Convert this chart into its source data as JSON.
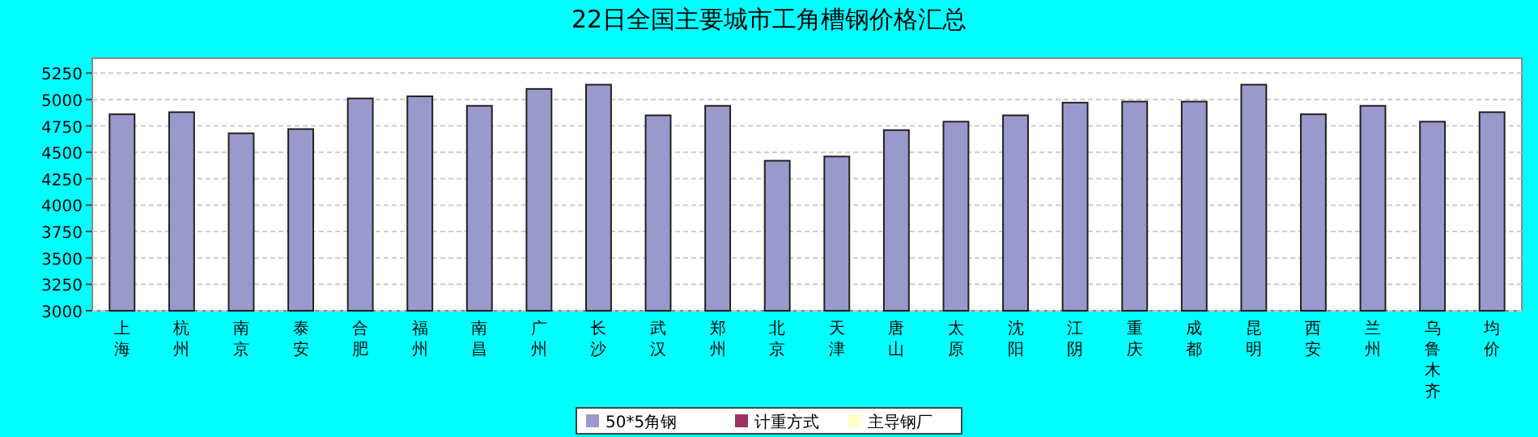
{
  "chart_data": {
    "type": "bar",
    "title": "22日全国主要城市工角槽钢价格汇总",
    "categories": [
      "上海",
      "杭州",
      "南京",
      "泰安",
      "合肥",
      "福州",
      "南昌",
      "广州",
      "长沙",
      "武汉",
      "郑州",
      "北京",
      "天津",
      "唐山",
      "太原",
      "沈阳",
      "江阴",
      "重庆",
      "成都",
      "昆明",
      "西安",
      "兰州",
      "乌鲁木齐",
      "均价"
    ],
    "series": [
      {
        "name": "50*5角钢",
        "color": "#9999cc",
        "values": [
          4860,
          4880,
          4680,
          4720,
          5010,
          5030,
          4940,
          5100,
          5140,
          4850,
          4940,
          4420,
          4460,
          4710,
          4790,
          4850,
          4970,
          4980,
          4980,
          5140,
          4860,
          4940,
          4790,
          4880
        ]
      },
      {
        "name": "计重方式",
        "color": "#993366",
        "values": [
          null,
          null,
          null,
          null,
          null,
          null,
          null,
          null,
          null,
          null,
          null,
          null,
          null,
          null,
          null,
          null,
          null,
          null,
          null,
          null,
          null,
          null,
          null,
          null
        ]
      },
      {
        "name": "主导钢厂",
        "color": "#ffffcc",
        "values": [
          null,
          null,
          null,
          null,
          null,
          null,
          null,
          null,
          null,
          null,
          null,
          null,
          null,
          null,
          null,
          null,
          null,
          null,
          null,
          null,
          null,
          null,
          null,
          null
        ]
      }
    ],
    "ylim": [
      3000,
      5390
    ],
    "yticks": [
      3000,
      3250,
      3500,
      3750,
      4000,
      4250,
      4500,
      4750,
      5000,
      5250
    ],
    "grid": "y",
    "legend": "bottom"
  }
}
